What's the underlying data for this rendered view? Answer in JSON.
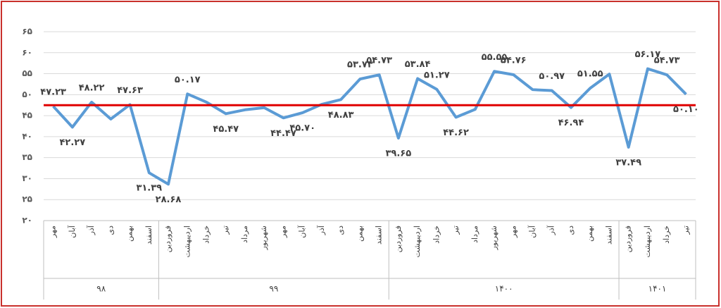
{
  "chart_data": {
    "type": "line",
    "categories": [
      "مهر",
      "آبان",
      "آذر",
      "دی",
      "بهمن",
      "اسفند",
      "فروردین",
      "اردیبهشت",
      "خرداد",
      "تیر",
      "مرداد",
      "شهریور",
      "مهر",
      "آبان",
      "آذر",
      "دی",
      "بهمن",
      "اسفند",
      "فروردین",
      "اردیبهشت",
      "خرداد",
      "تیر",
      "مرداد",
      "شهریور",
      "مهر",
      "آبان",
      "آذر",
      "دی",
      "بهمن",
      "اسفند",
      "فروردین",
      "اردیبهشت",
      "خرداد",
      "تیر"
    ],
    "groups": [
      {
        "label": "۹۸",
        "size": 6
      },
      {
        "label": "۹۹",
        "size": 12
      },
      {
        "label": "۱۴۰۰",
        "size": 12
      },
      {
        "label": "۱۴۰۱",
        "size": 4
      }
    ],
    "series": [
      {
        "color": "#5b9bd5",
        "values": [
          47.23,
          42.27,
          48.22,
          44.2,
          47.63,
          31.39,
          28.68,
          50.17,
          48.2,
          45.47,
          46.4,
          46.9,
          44.47,
          45.7,
          47.7,
          48.83,
          53.73,
          54.73,
          39.65,
          53.84,
          51.27,
          44.62,
          46.5,
          55.55,
          54.76,
          51.2,
          50.97,
          46.94,
          51.55,
          54.9,
          37.49,
          56.17,
          54.73,
          50.1
        ],
        "value_labels": [
          "۴۷.۲۳",
          "۴۲.۲۷",
          "۴۸.۲۲",
          null,
          "۴۷.۶۳",
          "۳۱.۳۹",
          "۲۸.۶۸",
          "۵۰.۱۷",
          null,
          "۴۵.۴۷",
          null,
          null,
          "۴۴.۴۷",
          "۴۵.۷۰",
          null,
          "۴۸.۸۳",
          "۵۳.۷۳",
          "۵۴.۷۳",
          "۳۹.۶۵",
          "۵۳.۸۴",
          "۵۱.۲۷",
          "۴۴.۶۲",
          null,
          "۵۵.۵۵",
          "۵۴.۷۶",
          null,
          "۵۰.۹۷",
          "۴۶.۹۴",
          "۵۱.۵۵",
          null,
          "۳۷.۴۹",
          "۵۶.۱۷",
          "۵۴.۷۳",
          "۵۰.۱۰"
        ]
      }
    ],
    "reference_line": {
      "value": 47.5,
      "color": "#e00000"
    },
    "ylim": [
      20,
      65
    ],
    "yticks": [
      {
        "value": 20,
        "label": "۲۰"
      },
      {
        "value": 25,
        "label": "۲۵"
      },
      {
        "value": 30,
        "label": "۳۰"
      },
      {
        "value": 35,
        "label": "۳۵"
      },
      {
        "value": 40,
        "label": "۴۰"
      },
      {
        "value": 45,
        "label": "۴۵"
      },
      {
        "value": 50,
        "label": "۵۰"
      },
      {
        "value": 55,
        "label": "۵۵"
      },
      {
        "value": 60,
        "label": "۶۰"
      },
      {
        "value": 65,
        "label": "۶۵"
      }
    ],
    "grid": true
  }
}
